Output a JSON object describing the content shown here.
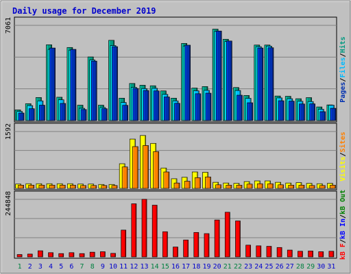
{
  "colors": {
    "background": "#c0c0c0",
    "title": "#0000cc",
    "weekday": "#0000cc",
    "weekend": "#008040",
    "grid": "#808080",
    "hits": "#009980",
    "files": "#00bbff",
    "pages": "#0030b0",
    "visits": "#ffff00",
    "sites": "#ff8000",
    "kb_in": "#0000ff",
    "kb_out": "#008000",
    "kb_f": "#ff0000"
  },
  "chart_data": {
    "type": "bar",
    "title": "Daily usage for December 2019",
    "x": [
      "1",
      "2",
      "3",
      "4",
      "5",
      "6",
      "7",
      "8",
      "9",
      "10",
      "11",
      "12",
      "13",
      "14",
      "15",
      "16",
      "17",
      "18",
      "19",
      "20",
      "21",
      "22",
      "23",
      "24",
      "25",
      "26",
      "27",
      "28",
      "29",
      "30",
      "31"
    ],
    "weekend_days": [
      "1",
      "7",
      "8",
      "14",
      "15",
      "21",
      "22",
      "28",
      "29"
    ],
    "panels": [
      {
        "max_label": "7061",
        "ylim": [
          0,
          7061
        ],
        "legend_labels": [
          "Pages",
          "Files",
          "Hits"
        ],
        "series": [
          {
            "name": "Hits",
            "values": [
              790,
              1250,
              1710,
              5620,
              1730,
              5420,
              1140,
              4720,
              1140,
              5950,
              1660,
              2750,
              2620,
              2580,
              2200,
              1660,
              5720,
              2410,
              2520,
              6780,
              6030,
              2450,
              1860,
              5600,
              5600,
              1820,
              1800,
              1620,
              1700,
              1010,
              1160
            ]
          },
          {
            "name": "Files",
            "values": [
              680,
              1110,
              1460,
              5280,
              1540,
              5220,
              910,
              4490,
              970,
              5560,
              1340,
              2460,
              2370,
              2390,
              1940,
              1460,
              5530,
              2210,
              2240,
              6610,
              5860,
              2230,
              1650,
              5480,
              5520,
              1680,
              1620,
              1430,
              1410,
              840,
              1140
            ]
          },
          {
            "name": "Pages",
            "values": [
              560,
              880,
              1140,
              5380,
              1270,
              5280,
              820,
              4410,
              880,
              5480,
              1130,
              2380,
              2230,
              2200,
              1750,
              1280,
              5590,
              1990,
              2030,
              6640,
              5900,
              1880,
              1320,
              5380,
              5400,
              1470,
              1440,
              1230,
              1240,
              660,
              910
            ]
          }
        ]
      },
      {
        "max_label": "1592",
        "ylim": [
          0,
          1592
        ],
        "legend_labels": [
          "Visits",
          "Sites"
        ],
        "series": [
          {
            "name": "Visits",
            "values": [
              120,
              130,
              130,
              130,
              130,
              130,
              120,
              120,
              110,
              110,
              690,
              1380,
              1480,
              1260,
              570,
              270,
              310,
              460,
              450,
              170,
              150,
              140,
              190,
              210,
              210,
              170,
              150,
              160,
              140,
              130,
              140
            ]
          },
          {
            "name": "Sites",
            "values": [
              90,
              90,
              90,
              90,
              90,
              90,
              80,
              80,
              80,
              80,
              600,
              1170,
              1200,
              1030,
              460,
              150,
              200,
              300,
              320,
              100,
              90,
              90,
              120,
              130,
              130,
              100,
              90,
              90,
              80,
              80,
              90
            ]
          }
        ]
      },
      {
        "max_label": "244848",
        "ylim": [
          0,
          244848
        ],
        "legend_labels": [
          "kB F",
          "kB In",
          "kB Out"
        ],
        "series": [
          {
            "name": "kB F",
            "values": [
              10000,
              12000,
              26000,
              18000,
              14000,
              18000,
              14000,
              20000,
              22000,
              15000,
              114000,
              226000,
              245000,
              220000,
              107000,
              42000,
              72000,
              104000,
              99000,
              157000,
              190000,
              153000,
              50000,
              47000,
              45000,
              40000,
              29000,
              24000,
              25000,
              22000,
              24000
            ]
          }
        ]
      }
    ]
  }
}
